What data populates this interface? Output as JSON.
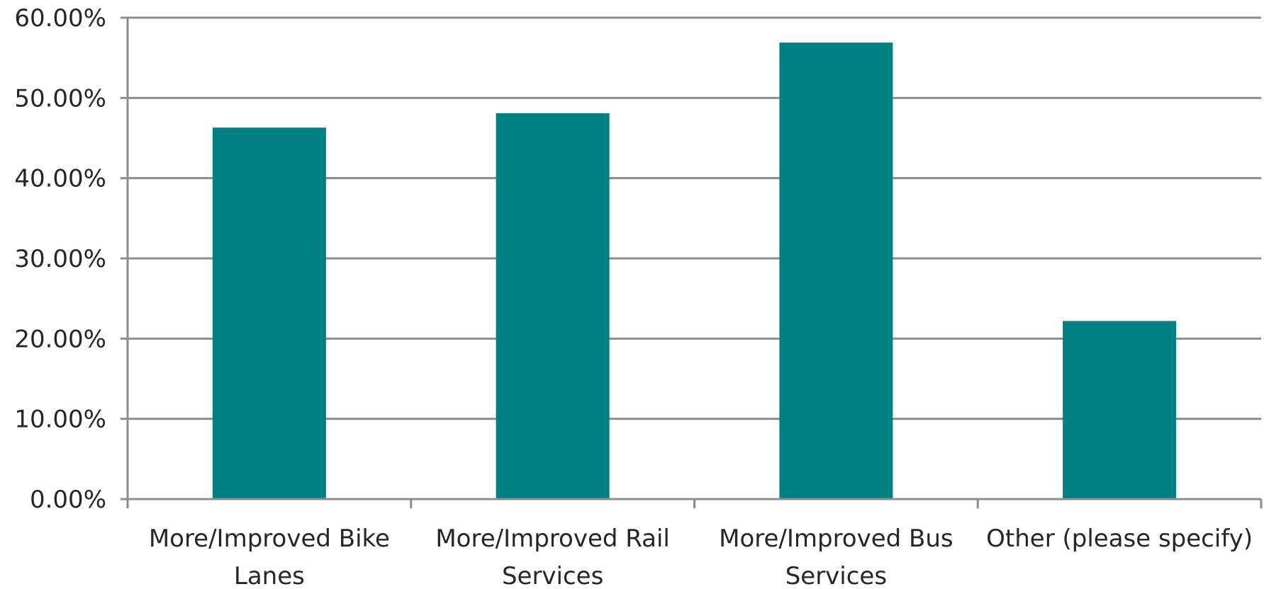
{
  "chart_data": {
    "type": "bar",
    "title": "",
    "xlabel": "",
    "ylabel": "",
    "categories": [
      [
        "More/Improved Bike",
        "Lanes"
      ],
      [
        "More/Improved Rail",
        "Services"
      ],
      [
        "More/Improved Bus",
        "Services"
      ],
      [
        "Other (please specify)"
      ]
    ],
    "series": [
      {
        "values": [
          46.3,
          48.1,
          56.9,
          22.2
        ]
      }
    ],
    "ylim": [
      0,
      60
    ],
    "yticks": [
      0,
      10,
      20,
      30,
      40,
      50,
      60
    ],
    "ytick_labels": [
      "0.00%",
      "10.00%",
      "20.00%",
      "30.00%",
      "40.00%",
      "50.00%",
      "60.00%"
    ],
    "grid": true,
    "legend": "none",
    "colors": {
      "bar": "#008080",
      "grid": "#8c8c8c",
      "axis": "#8c8c8c",
      "text": "#262626"
    }
  }
}
